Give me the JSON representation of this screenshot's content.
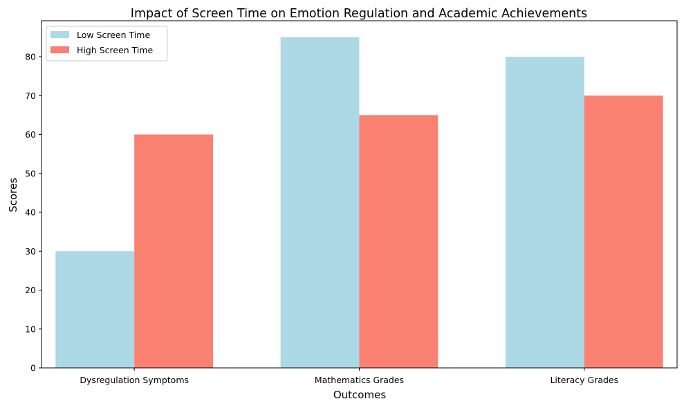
{
  "chart_data": {
    "type": "bar",
    "title": "Impact of Screen Time on Emotion Regulation and Academic Achievements",
    "xlabel": "Outcomes",
    "ylabel": "Scores",
    "categories": [
      "Dysregulation Symptoms",
      "Mathematics Grades",
      "Literacy Grades"
    ],
    "series": [
      {
        "name": "Low Screen Time",
        "values": [
          30,
          85,
          80
        ],
        "color": "#add8e6"
      },
      {
        "name": "High Screen Time",
        "values": [
          60,
          65,
          70
        ],
        "color": "#fa8072"
      }
    ],
    "ylim": [
      0,
      89.25
    ],
    "yticks": [
      "0",
      "10",
      "20",
      "30",
      "40",
      "50",
      "60",
      "70",
      "80"
    ],
    "grid": false,
    "legend_position": "top-left"
  }
}
